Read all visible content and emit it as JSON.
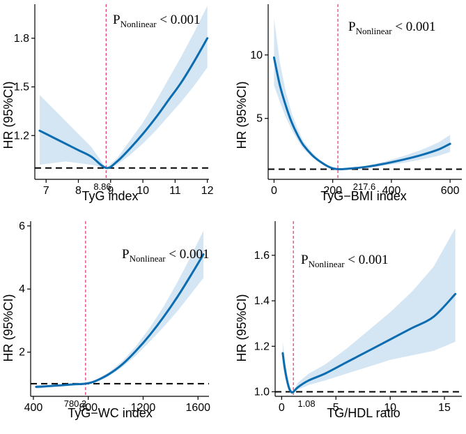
{
  "chart_data": [
    {
      "id": "tyg",
      "type": "line",
      "xlabel": "TyG index",
      "ylabel": "HR (95%CI)",
      "xlim": [
        6.65,
        12.05
      ],
      "ylim": [
        0.93,
        2.01
      ],
      "xticks": [
        7,
        8,
        9,
        10,
        11,
        12
      ],
      "yticks": [
        1.2,
        1.5,
        1.8
      ],
      "ytick_labels": [
        "1.2",
        "1.5",
        "1.8"
      ],
      "ref_x": 8.86,
      "ref_label": "8.86",
      "p_main": "P",
      "p_sub": "Nonlinear",
      "p_rest": " < 0.001",
      "hr_ref": 1.0,
      "x": [
        6.8,
        7.2,
        7.6,
        8.0,
        8.4,
        8.86,
        9.2,
        9.6,
        10.0,
        10.4,
        10.8,
        11.2,
        11.6,
        12.0
      ],
      "y": [
        1.23,
        1.19,
        1.15,
        1.11,
        1.07,
        1.0,
        1.04,
        1.12,
        1.21,
        1.31,
        1.42,
        1.53,
        1.66,
        1.8
      ],
      "lower": [
        1.02,
        1.03,
        1.04,
        1.03,
        1.02,
        1.0,
        1.02,
        1.08,
        1.15,
        1.23,
        1.32,
        1.41,
        1.51,
        1.62
      ],
      "upper": [
        1.45,
        1.37,
        1.29,
        1.21,
        1.13,
        1.0,
        1.06,
        1.17,
        1.28,
        1.41,
        1.55,
        1.69,
        1.84,
        2.0
      ]
    },
    {
      "id": "tygbmi",
      "type": "line",
      "xlabel": "TyG−BMI index",
      "ylabel": "HR (95%CI)",
      "xlim": [
        -20,
        640
      ],
      "ylim": [
        0.2,
        14
      ],
      "xticks": [
        0,
        200,
        400,
        600
      ],
      "yticks": [
        5,
        10
      ],
      "ytick_labels": [
        "5",
        "10"
      ],
      "ref_x": 217.6,
      "ref_label": "217.6",
      "p_main": "P",
      "p_sub": "Nonlinear",
      "p_rest": " < 0.001",
      "hr_ref": 1.0,
      "x": [
        0,
        20,
        40,
        60,
        80,
        100,
        130,
        160,
        190,
        217.6,
        260,
        320,
        380,
        440,
        500,
        560,
        600
      ],
      "y": [
        9.8,
        7.6,
        6.0,
        4.7,
        3.7,
        2.9,
        2.1,
        1.55,
        1.15,
        1.0,
        1.05,
        1.2,
        1.45,
        1.75,
        2.1,
        2.55,
        3.0
      ],
      "lower": [
        7.6,
        6.3,
        5.1,
        4.1,
        3.3,
        2.6,
        1.95,
        1.45,
        1.1,
        1.0,
        1.02,
        1.12,
        1.3,
        1.5,
        1.75,
        2.05,
        2.35
      ],
      "upper": [
        12.9,
        9.4,
        7.1,
        5.4,
        4.2,
        3.2,
        2.3,
        1.65,
        1.2,
        1.0,
        1.08,
        1.3,
        1.62,
        2.02,
        2.5,
        3.1,
        3.7
      ]
    },
    {
      "id": "tygwc",
      "type": "line",
      "xlabel": "TyG−WC index",
      "ylabel": "HR (95%CI)",
      "xlim": [
        380,
        1680
      ],
      "ylim": [
        0.6,
        6.15
      ],
      "xticks": [
        400,
        800,
        1200,
        1600
      ],
      "yticks": [
        2,
        4,
        6
      ],
      "ytick_labels": [
        "2",
        "4",
        "6"
      ],
      "ref_x": 780.3,
      "ref_label": "780.3",
      "p_main": "P",
      "p_sub": "Nonlinear",
      "p_rest": " < 0.001",
      "hr_ref": 1.0,
      "x": [
        420,
        500,
        600,
        700,
        780.3,
        850,
        950,
        1050,
        1150,
        1250,
        1350,
        1450,
        1550,
        1640
      ],
      "y": [
        0.9,
        0.92,
        0.95,
        0.98,
        1.0,
        1.08,
        1.3,
        1.62,
        2.05,
        2.55,
        3.12,
        3.75,
        4.45,
        5.1
      ],
      "lower": [
        0.84,
        0.88,
        0.92,
        0.96,
        1.0,
        1.05,
        1.24,
        1.53,
        1.9,
        2.34,
        2.8,
        3.3,
        3.85,
        4.35
      ],
      "upper": [
        0.96,
        0.96,
        0.98,
        1.0,
        1.0,
        1.11,
        1.36,
        1.72,
        2.2,
        2.78,
        3.45,
        4.22,
        5.05,
        5.85
      ]
    },
    {
      "id": "tghdl",
      "type": "line",
      "xlabel": "TG/HDL ratio",
      "ylabel": "HR (95%CI)",
      "xlim": [
        -0.6,
        16.6
      ],
      "ylim": [
        0.98,
        1.75
      ],
      "xticks": [
        0,
        5,
        10,
        15
      ],
      "yticks": [
        1.0,
        1.2,
        1.4,
        1.6
      ],
      "ytick_labels": [
        "1.0",
        "1.2",
        "1.4",
        "1.6"
      ],
      "ref_x": 1.08,
      "ref_label": "1.08",
      "p_main": "P",
      "p_sub": "Nonlinear",
      "p_rest": " < 0.001",
      "hr_ref": 1.0,
      "x": [
        0.1,
        0.3,
        0.6,
        0.85,
        1.08,
        1.5,
        2.5,
        4,
        6,
        8,
        10,
        12,
        14,
        16
      ],
      "y": [
        1.17,
        1.1,
        1.03,
        1.0,
        1.0,
        1.02,
        1.05,
        1.08,
        1.13,
        1.18,
        1.23,
        1.28,
        1.33,
        1.43
      ],
      "lower": [
        1.12,
        1.06,
        1.01,
        0.995,
        1.0,
        1.01,
        1.03,
        1.05,
        1.08,
        1.11,
        1.14,
        1.16,
        1.18,
        1.22
      ],
      "upper": [
        1.22,
        1.14,
        1.05,
        1.01,
        1.0,
        1.04,
        1.08,
        1.12,
        1.19,
        1.27,
        1.35,
        1.44,
        1.55,
        1.72
      ]
    }
  ]
}
